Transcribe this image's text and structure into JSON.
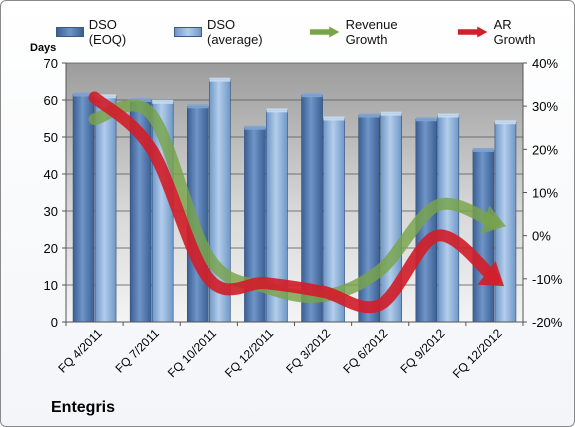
{
  "company": "Entegris",
  "chart_data": {
    "type": "bar",
    "categories": [
      "FQ 4/2011",
      "FQ 7/2011",
      "FQ 10/2011",
      "FQ 12/2011",
      "FQ 3/2012",
      "FQ 6/2012",
      "FQ 9/2012",
      "FQ 12/2012"
    ],
    "series": [
      {
        "name": "DSO (EOQ)",
        "values": [
          61.5,
          60.0,
          58.3,
          52.5,
          61.3,
          55.8,
          54.8,
          46.5
        ],
        "color": "#4f78b0"
      },
      {
        "name": "DSO (average)",
        "values": [
          61.0,
          59.5,
          65.5,
          57.2,
          55.0,
          56.3,
          55.8,
          54.0
        ],
        "color": "#8fb4de"
      },
      {
        "name": "Revenue Growth",
        "values": [
          27,
          28,
          -5,
          -12,
          -14,
          -8,
          7,
          3
        ],
        "color": "#79a44a"
      },
      {
        "name": "AR Growth",
        "values": [
          32,
          20,
          -10,
          -11,
          -13,
          -16,
          0,
          -10
        ],
        "color": "#d0202a"
      }
    ],
    "ylabel": "Days",
    "ylim": [
      0,
      70
    ],
    "yticks": [
      "0",
      "10",
      "20",
      "30",
      "40",
      "50",
      "60",
      "70"
    ],
    "y2lim": [
      -20,
      40
    ],
    "y2ticks": [
      "-20%",
      "-10%",
      "0%",
      "10%",
      "20%",
      "30%",
      "40%"
    ],
    "grid": true,
    "legend_position": "top"
  }
}
